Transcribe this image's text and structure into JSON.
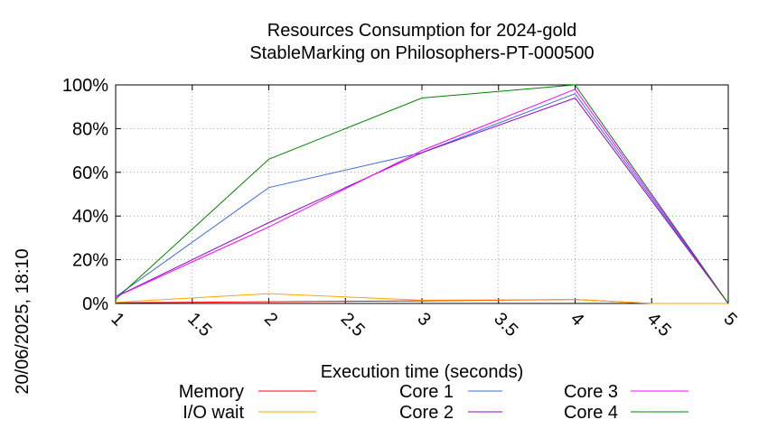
{
  "chart_data": {
    "type": "line",
    "title_lines": [
      "Resources Consumption for 2024-gold",
      "StableMarking on Philosophers-PT-000500"
    ],
    "xlabel": "Execution time (seconds)",
    "ylabel": "",
    "side_label": "20/06/2025, 18:10",
    "xlim": [
      1,
      5
    ],
    "ylim": [
      0,
      100
    ],
    "x_ticks": [
      "1",
      "1.5",
      "2",
      "2.5",
      "3",
      "3.5",
      "4",
      "4.5",
      "5"
    ],
    "y_ticks": [
      "0%",
      "20%",
      "40%",
      "60%",
      "80%",
      "100%"
    ],
    "grid": true,
    "legend_position": "bottom",
    "series": [
      {
        "name": "Memory",
        "color": "#ff0000",
        "x": [
          1,
          2,
          3,
          4,
          4.5,
          5
        ],
        "y": [
          0.3,
          0.8,
          1.2,
          1.8,
          0,
          0
        ]
      },
      {
        "name": "I/O wait",
        "color": "#ffa500",
        "x": [
          1,
          2,
          3,
          4,
          4.5,
          5
        ],
        "y": [
          0.5,
          4.5,
          1.5,
          1.8,
          0,
          0
        ]
      },
      {
        "name": "Core 1",
        "color": "#4169e1",
        "x": [
          1,
          2,
          3,
          4,
          5
        ],
        "y": [
          3,
          53,
          69,
          96,
          0
        ]
      },
      {
        "name": "Core 2",
        "color": "#9400d3",
        "x": [
          1,
          2,
          3,
          4,
          5
        ],
        "y": [
          3,
          37,
          69,
          94,
          0
        ]
      },
      {
        "name": "Core 3",
        "color": "#ff00ff",
        "x": [
          1,
          2,
          3,
          4,
          5
        ],
        "y": [
          3,
          35,
          70,
          98,
          0
        ]
      },
      {
        "name": "Core 4",
        "color": "#008000",
        "x": [
          1,
          2,
          3,
          4,
          5
        ],
        "y": [
          2,
          66,
          94,
          100,
          0
        ]
      }
    ]
  }
}
